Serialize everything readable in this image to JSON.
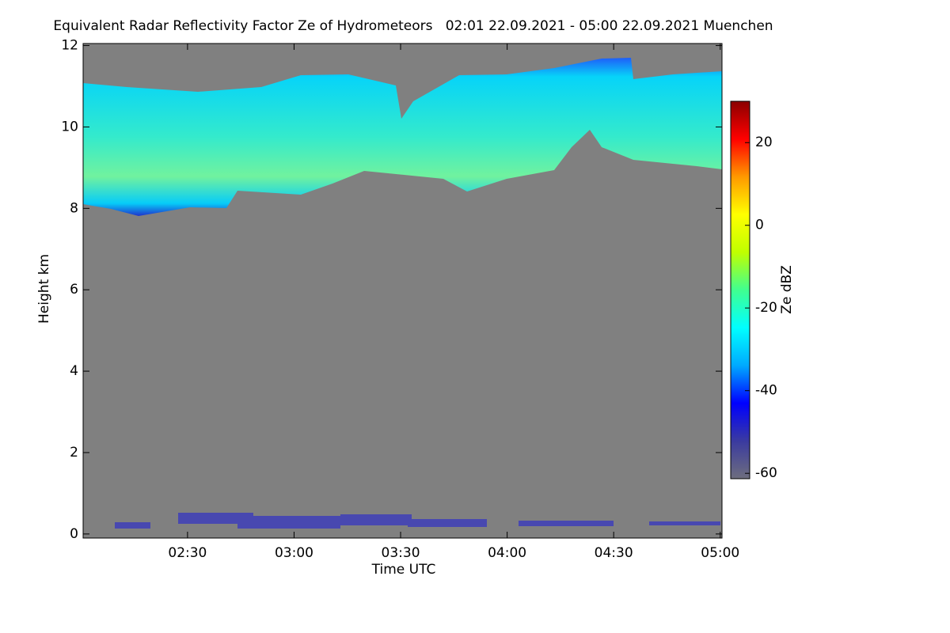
{
  "chart_data": {
    "type": "heatmap",
    "title": "Equivalent Radar Reflectivity Factor Ze of Hydrometeors   02:01 22.09.2021 - 05:00 22.09.2021 Muenchen",
    "x_label": "Time UTC",
    "y_label": "Height km",
    "colorbar_label": "Ze dBZ",
    "xlim": [
      120.6,
      300.5
    ],
    "xticks": [
      {
        "value": 150,
        "label": "02:30"
      },
      {
        "value": 180,
        "label": "03:00"
      },
      {
        "value": 210,
        "label": "03:30"
      },
      {
        "value": 240,
        "label": "04:00"
      },
      {
        "value": 270,
        "label": "04:30"
      },
      {
        "value": 300,
        "label": "05:00"
      }
    ],
    "ylim": [
      -0.1,
      12.05
    ],
    "yticks": [
      0,
      2,
      4,
      6,
      8,
      10,
      12
    ],
    "zlim": [
      -61.3,
      30
    ],
    "zticks": [
      -60,
      -40,
      -20,
      0,
      20
    ],
    "colormap": [
      "#6e6e7e",
      "#3a3aa0",
      "#0000ff",
      "#00aaff",
      "#00ffff",
      "#40ff90",
      "#c0ff00",
      "#ffff00",
      "#ff9900",
      "#ff0000",
      "#8b0000"
    ],
    "background": "#808080"
  }
}
